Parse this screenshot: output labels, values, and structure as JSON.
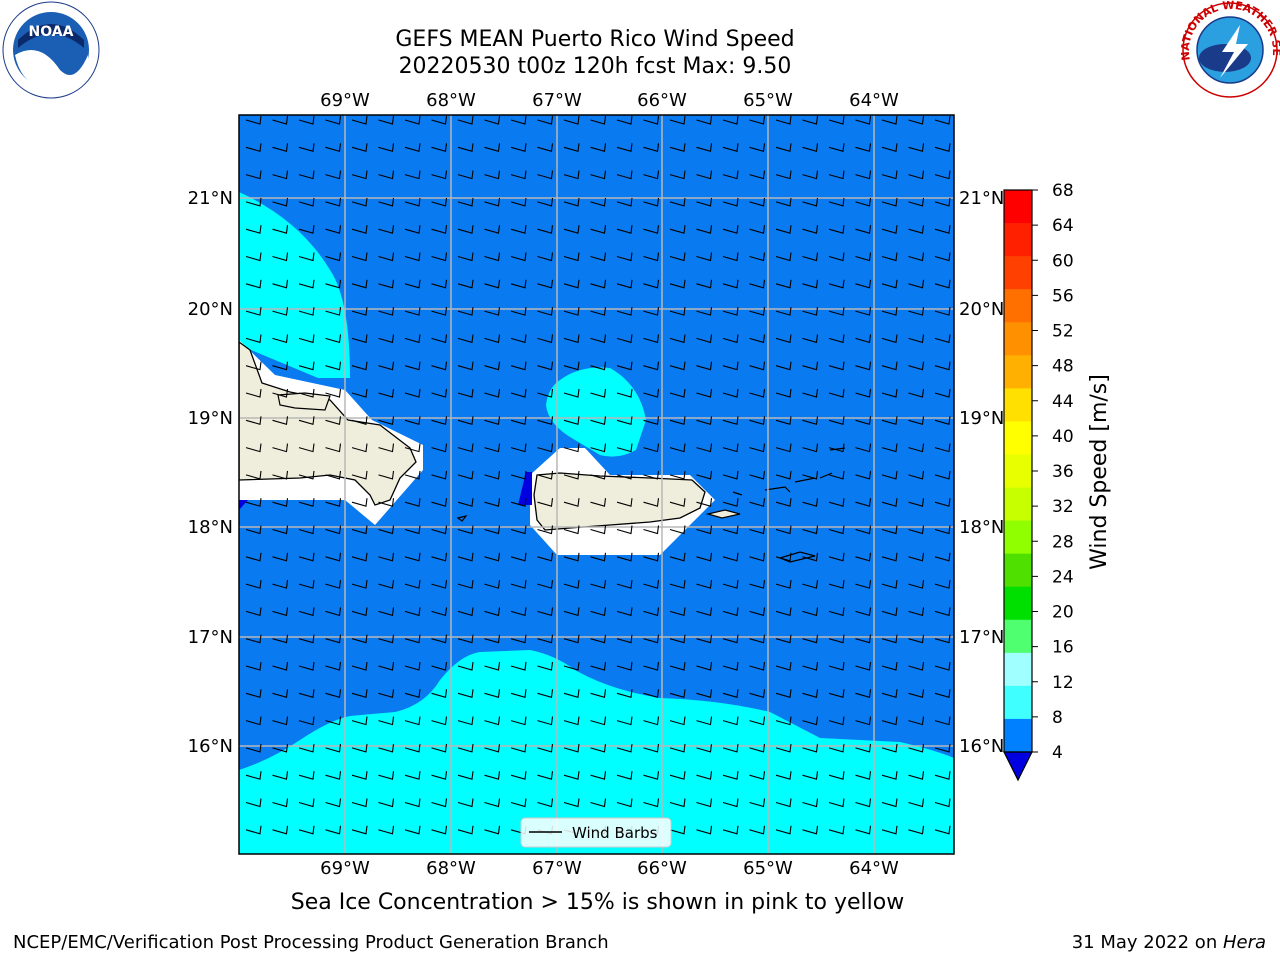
{
  "header": {
    "title_line1": "GEFS MEAN Puerto Rico Wind Speed",
    "title_line2": "20220530 t00z 120h fcst   Max: 9.50"
  },
  "logos": {
    "left": "NOAA",
    "left_ring": "NATIONAL OCEANIC AND ATMOSPHERIC ADMINISTRATION · U.S. DEPARTMENT OF COMMERCE",
    "right_ring": "NATIONAL WEATHER SERVICE"
  },
  "map": {
    "lon_labels": [
      "69°W",
      "68°W",
      "67°W",
      "66°W",
      "65°W",
      "64°W"
    ],
    "lat_labels": [
      "21°N",
      "20°N",
      "19°N",
      "18°N",
      "17°N",
      "16°N"
    ],
    "legend_label": "Wind Barbs"
  },
  "colorbar": {
    "label": "Wind Speed [m/s]",
    "ticks": [
      "68",
      "64",
      "60",
      "56",
      "52",
      "48",
      "44",
      "40",
      "36",
      "32",
      "28",
      "24",
      "20",
      "16",
      "12",
      "8",
      "4"
    ],
    "colors": [
      "#ff0000",
      "#ff2000",
      "#ff4000",
      "#ff7000",
      "#ff9000",
      "#ffb000",
      "#ffe000",
      "#ffff00",
      "#e8ff00",
      "#c8ff00",
      "#90ff00",
      "#50e000",
      "#00e000",
      "#50ff70",
      "#a0ffff",
      "#40ffff",
      "#00ffff",
      "#0080ff",
      "#0000e0"
    ]
  },
  "caption": "Sea Ice Concentration > 15% is shown in pink to yellow",
  "footer": {
    "left": "NCEP/EMC/Verification Post Processing Product Generation Branch",
    "right_date": "31 May 2022 on ",
    "right_machine": "Hera"
  }
}
